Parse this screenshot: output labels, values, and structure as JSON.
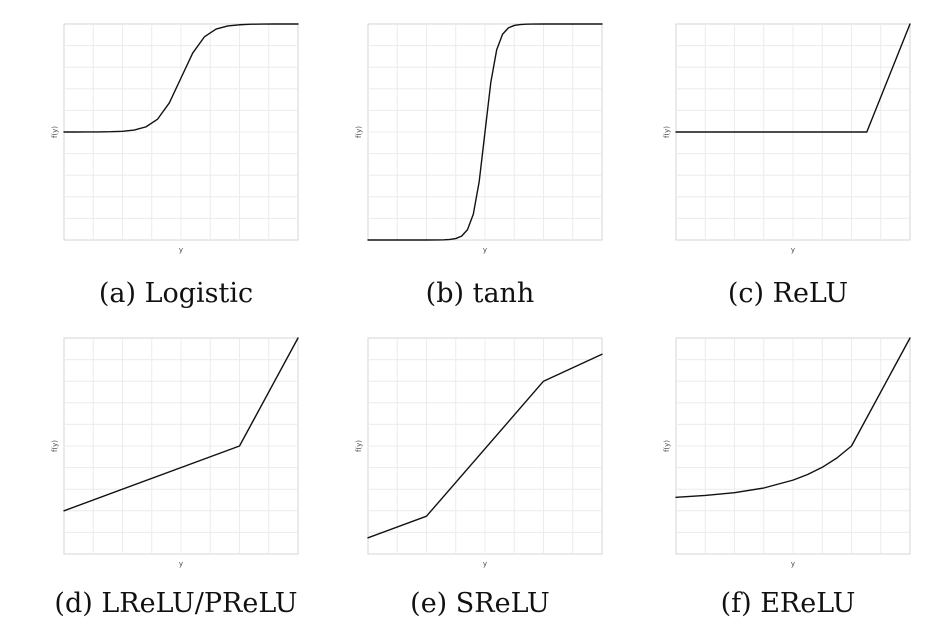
{
  "chart_data": [
    {
      "type": "line",
      "caption": "(a) Logistic",
      "xlabel": "y",
      "ylabel": "f(y)",
      "x": [
        -10,
        -9,
        -8,
        -7,
        -6,
        -5,
        -4,
        -3,
        -2,
        -1,
        0,
        1,
        2,
        3,
        4,
        5,
        6,
        7,
        8,
        9,
        10
      ],
      "series": [
        {
          "values": [
            4.54e-05,
            0.000123,
            0.000335,
            0.000911,
            0.00247,
            0.0067,
            0.018,
            0.0474,
            0.119,
            0.269,
            0.5,
            0.731,
            0.881,
            0.953,
            0.982,
            0.993,
            0.998,
            0.999,
            1.0,
            1.0,
            1.0
          ]
        }
      ],
      "xlim": [
        -10,
        10
      ],
      "ylim": [
        -1,
        1
      ],
      "grid": true
    },
    {
      "type": "line",
      "caption": "(b) tanh",
      "xlabel": "y",
      "ylabel": "f(y)",
      "x": [
        -10,
        -9,
        -8,
        -7,
        -6,
        -5,
        -4,
        -3.5,
        -3,
        -2.5,
        -2,
        -1.5,
        -1,
        -0.5,
        0,
        0.5,
        1,
        1.5,
        2,
        2.5,
        3,
        3.5,
        4,
        5,
        6,
        7,
        8,
        9,
        10
      ],
      "series": [
        {
          "values": [
            -1.0,
            -1.0,
            -1.0,
            -1.0,
            -1.0,
            -0.9999,
            -0.9993,
            -0.9982,
            -0.9951,
            -0.9866,
            -0.964,
            -0.9051,
            -0.7616,
            -0.4621,
            0.0,
            0.4621,
            0.7616,
            0.9051,
            0.964,
            0.9866,
            0.9951,
            0.9982,
            0.9993,
            0.9999,
            1.0,
            1.0,
            1.0,
            1.0,
            1.0
          ]
        }
      ],
      "xlim": [
        -10,
        10
      ],
      "ylim": [
        -1,
        1
      ],
      "grid": true
    },
    {
      "type": "line",
      "caption": "(c) ReLU",
      "xlabel": "y",
      "ylabel": "f(y)",
      "x": [
        -5,
        0.3,
        1.5
      ],
      "series": [
        {
          "values": [
            0,
            0,
            1.0
          ]
        }
      ],
      "xlim": [
        -5,
        1.5
      ],
      "ylim": [
        -1,
        1
      ],
      "grid": true
    },
    {
      "type": "line",
      "caption": "(d) LReLU/PReLU",
      "xlabel": "y",
      "ylabel": "f(y)",
      "x": [
        -3,
        0,
        1
      ],
      "series": [
        {
          "values": [
            -0.6,
            0,
            1.0
          ]
        }
      ],
      "xlim": [
        -3,
        1
      ],
      "ylim": [
        -1,
        1
      ],
      "grid": true
    },
    {
      "type": "line",
      "caption": "(e) SReLU",
      "xlabel": "y",
      "ylabel": "f(y)",
      "x": [
        -1,
        -0.5,
        0.5,
        1
      ],
      "series": [
        {
          "values": [
            -0.85,
            -0.65,
            0.6,
            0.85
          ]
        }
      ],
      "xlim": [
        -1,
        1
      ],
      "ylim": [
        -1,
        1
      ],
      "grid": true
    },
    {
      "type": "line",
      "caption": "(f) EReLU",
      "xlabel": "y",
      "ylabel": "f(y)",
      "x": [
        -3,
        -2.5,
        -2,
        -1.5,
        -1,
        -0.75,
        -0.5,
        -0.25,
        0,
        1
      ],
      "series": [
        {
          "values": [
            -0.475,
            -0.458,
            -0.432,
            -0.389,
            -0.316,
            -0.264,
            -0.197,
            -0.111,
            0,
            1.0
          ]
        }
      ],
      "xlim": [
        -3,
        1
      ],
      "ylim": [
        -1,
        1
      ],
      "grid": true
    }
  ]
}
